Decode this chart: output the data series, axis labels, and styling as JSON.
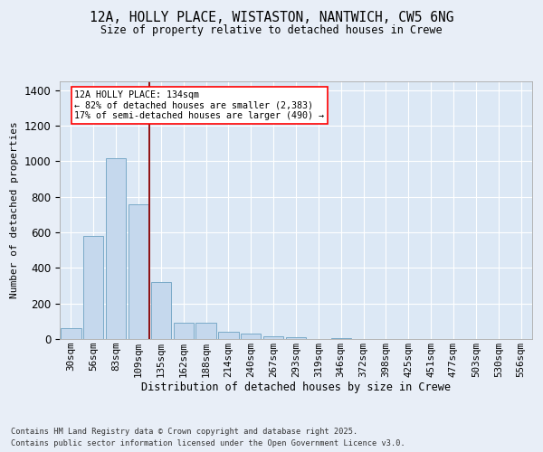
{
  "title_line1": "12A, HOLLY PLACE, WISTASTON, NANTWICH, CW5 6NG",
  "title_line2": "Size of property relative to detached houses in Crewe",
  "xlabel": "Distribution of detached houses by size in Crewe",
  "ylabel": "Number of detached properties",
  "categories": [
    "30sqm",
    "56sqm",
    "83sqm",
    "109sqm",
    "135sqm",
    "162sqm",
    "188sqm",
    "214sqm",
    "240sqm",
    "267sqm",
    "293sqm",
    "319sqm",
    "346sqm",
    "372sqm",
    "398sqm",
    "425sqm",
    "451sqm",
    "477sqm",
    "503sqm",
    "530sqm",
    "556sqm"
  ],
  "values": [
    60,
    580,
    1020,
    760,
    320,
    90,
    90,
    40,
    30,
    15,
    10,
    0,
    5,
    0,
    0,
    0,
    0,
    0,
    0,
    0,
    0
  ],
  "bar_color": "#c5d8ed",
  "bar_edge_color": "#7aaac8",
  "red_line_after_index": 3,
  "annotation_line1": "12A HOLLY PLACE: 134sqm",
  "annotation_line2": "← 82% of detached houses are smaller (2,383)",
  "annotation_line3": "17% of semi-detached houses are larger (490) →",
  "ylim": [
    0,
    1450
  ],
  "yticks": [
    0,
    200,
    400,
    600,
    800,
    1000,
    1200,
    1400
  ],
  "background_color": "#e8eef7",
  "plot_bg_color": "#dce8f5",
  "footer_line1": "Contains HM Land Registry data © Crown copyright and database right 2025.",
  "footer_line2": "Contains public sector information licensed under the Open Government Licence v3.0."
}
